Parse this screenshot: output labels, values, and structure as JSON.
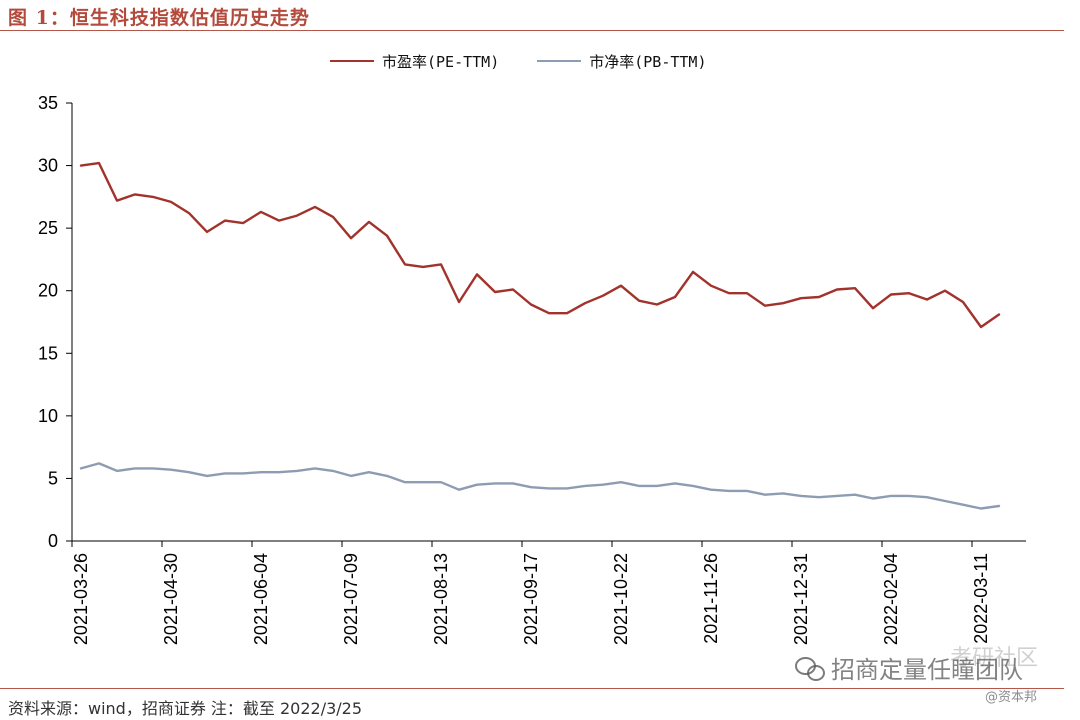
{
  "figure_title": "图 1：恒生科技指数估值历史走势",
  "source_note": "资料来源：wind，招商证券 注：截至 2022/3/25",
  "watermark": {
    "main": "招商定量任瞳团队",
    "secondary": "考研社区",
    "small": "@资本邦",
    "icon": "wechat-icon"
  },
  "colors": {
    "pe": "#a1332c",
    "pb": "#8e9cb3",
    "accent": "#b3574b"
  },
  "chart_data": {
    "type": "line",
    "title": "",
    "xlabel": "",
    "ylabel": "",
    "ylim": [
      0,
      35
    ],
    "yticks": [
      0,
      5,
      10,
      15,
      20,
      25,
      30,
      35
    ],
    "grid": false,
    "legend_position": "top-center",
    "x": [
      "2021-03-26",
      "2021-04-02",
      "2021-04-09",
      "2021-04-16",
      "2021-04-23",
      "2021-04-30",
      "2021-05-07",
      "2021-05-14",
      "2021-05-21",
      "2021-05-28",
      "2021-06-04",
      "2021-06-11",
      "2021-06-18",
      "2021-06-25",
      "2021-07-02",
      "2021-07-09",
      "2021-07-16",
      "2021-07-23",
      "2021-07-30",
      "2021-08-06",
      "2021-08-13",
      "2021-08-20",
      "2021-08-27",
      "2021-09-03",
      "2021-09-10",
      "2021-09-17",
      "2021-09-24",
      "2021-10-01",
      "2021-10-08",
      "2021-10-15",
      "2021-10-22",
      "2021-10-29",
      "2021-11-05",
      "2021-11-12",
      "2021-11-19",
      "2021-11-26",
      "2021-12-03",
      "2021-12-10",
      "2021-12-17",
      "2021-12-24",
      "2021-12-31",
      "2022-01-07",
      "2022-01-14",
      "2022-01-21",
      "2022-01-28",
      "2022-02-04",
      "2022-02-11",
      "2022-02-18",
      "2022-02-25",
      "2022-03-04",
      "2022-03-11",
      "2022-03-18",
      "2022-03-25"
    ],
    "x_tick_labels": [
      "2021-03-26",
      "2021-04-30",
      "2021-06-04",
      "2021-07-09",
      "2021-08-13",
      "2021-09-17",
      "2021-10-22",
      "2021-11-26",
      "2021-12-31",
      "2022-02-04",
      "2022-03-11"
    ],
    "series": [
      {
        "name": "市盈率(PE-TTM)",
        "values": [
          30.0,
          30.2,
          27.2,
          27.7,
          27.5,
          27.1,
          26.2,
          24.7,
          25.6,
          25.4,
          26.3,
          25.6,
          26.0,
          26.7,
          25.9,
          24.2,
          25.5,
          24.4,
          22.1,
          21.9,
          22.1,
          19.1,
          21.3,
          19.9,
          20.1,
          18.9,
          18.2,
          18.2,
          19.0,
          19.6,
          20.4,
          19.2,
          18.9,
          19.5,
          21.5,
          20.4,
          19.8,
          19.8,
          18.8,
          19.0,
          19.4,
          19.5,
          20.1,
          20.2,
          18.6,
          19.7,
          19.8,
          19.3,
          20.0,
          19.1,
          17.1,
          18.1,
          null
        ]
      },
      {
        "name": "市净率(PB-TTM)",
        "values": [
          5.8,
          6.2,
          5.6,
          5.8,
          5.8,
          5.7,
          5.5,
          5.2,
          5.4,
          5.4,
          5.5,
          5.5,
          5.6,
          5.8,
          5.6,
          5.2,
          5.5,
          5.2,
          4.7,
          4.7,
          4.7,
          4.1,
          4.5,
          4.6,
          4.6,
          4.3,
          4.2,
          4.2,
          4.4,
          4.5,
          4.7,
          4.4,
          4.4,
          4.6,
          4.4,
          4.1,
          4.0,
          4.0,
          3.7,
          3.8,
          3.6,
          3.5,
          3.6,
          3.7,
          3.4,
          3.6,
          3.6,
          3.5,
          3.2,
          2.9,
          2.6,
          2.8,
          null
        ]
      }
    ]
  }
}
